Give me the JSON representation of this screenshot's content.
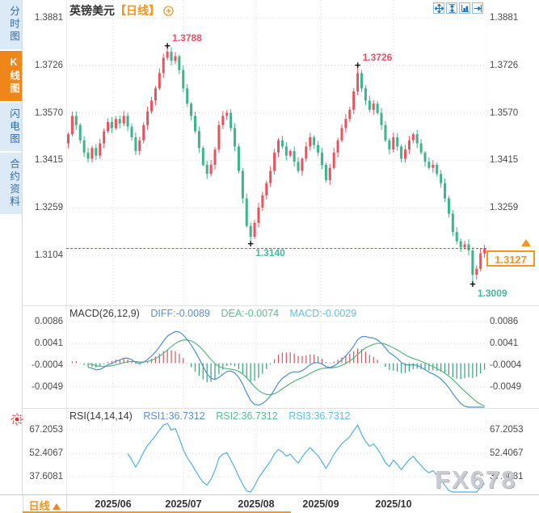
{
  "sidebar": {
    "tabs": [
      {
        "label": "分时图",
        "active": false
      },
      {
        "label": "K线图",
        "active": true
      },
      {
        "label": "闪电图",
        "active": false
      },
      {
        "label": "合约资料",
        "active": false
      }
    ]
  },
  "header": {
    "title": "英镑美元",
    "period_tag": "【日线】",
    "toolbar_icons": [
      "crosshair-move",
      "y-axis-zoom",
      "axis-scale",
      "scroll-right"
    ]
  },
  "indicators": {
    "macd": {
      "title": "MACD(26,12,9)",
      "diff_label": "DIFF:-0.0089",
      "dea_label": "DEA:-0.0074",
      "macd_label": "MACD:-0.0029"
    },
    "rsi": {
      "title": "RSI(14,14,14)",
      "rsi1_label": "RSI1:36.7312",
      "rsi2_label": "RSI2:36.7312",
      "rsi3_label": "RSI3:36.7312"
    }
  },
  "bottom_bar": {
    "period_label": "日线",
    "months": [
      "2025/06",
      "2025/07",
      "2025/08",
      "2025/09",
      "2025/10"
    ]
  },
  "watermark": "FX678",
  "chart_data": [
    {
      "type": "candlestick",
      "symbol": "英镑美元",
      "period": "日线",
      "y_ticks": [
        "1.3881",
        "1.3726",
        "1.3570",
        "1.3415",
        "1.3259",
        "1.3104"
      ],
      "x_labels": [
        "2025/06",
        "2025/07",
        "2025/08",
        "2025/09",
        "2025/10"
      ],
      "ylim": [
        1.3009,
        1.3881
      ],
      "open_first": 1.347,
      "closes": [
        1.35,
        1.356,
        1.353,
        1.348,
        1.344,
        1.342,
        1.3455,
        1.343,
        1.347,
        1.351,
        1.354,
        1.352,
        1.355,
        1.3535,
        1.356,
        1.3525,
        1.349,
        1.3445,
        1.348,
        1.353,
        1.3575,
        1.361,
        1.365,
        1.37,
        1.375,
        1.377,
        1.374,
        1.3755,
        1.371,
        1.365,
        1.36,
        1.356,
        1.351,
        1.3455,
        1.34,
        1.337,
        1.34,
        1.345,
        1.353,
        1.356,
        1.357,
        1.352,
        1.346,
        1.338,
        1.329,
        1.32,
        1.3165,
        1.321,
        1.326,
        1.33,
        1.334,
        1.338,
        1.344,
        1.348,
        1.346,
        1.343,
        1.3445,
        1.341,
        1.338,
        1.342,
        1.346,
        1.349,
        1.3465,
        1.344,
        1.34,
        1.335,
        1.339,
        1.344,
        1.348,
        1.352,
        1.355,
        1.358,
        1.364,
        1.37,
        1.365,
        1.361,
        1.358,
        1.36,
        1.357,
        1.353,
        1.348,
        1.345,
        1.349,
        1.346,
        1.342,
        1.345,
        1.348,
        1.35,
        1.347,
        1.344,
        1.341,
        1.339,
        1.34,
        1.337,
        1.334,
        1.329,
        1.324,
        1.318,
        1.315,
        1.313,
        1.314,
        1.312,
        1.304,
        1.306,
        1.311,
        1.3127
      ],
      "key_points": [
        {
          "index": 25,
          "price": 1.3788,
          "label": "1.3788",
          "kind": "high"
        },
        {
          "index": 73,
          "price": 1.3726,
          "label": "1.3726",
          "kind": "high"
        },
        {
          "index": 46,
          "price": 1.314,
          "label": "1.3140",
          "kind": "low"
        },
        {
          "index": 102,
          "price": 1.3009,
          "label": "1.3009",
          "kind": "low"
        }
      ],
      "current_price": {
        "label": "1.3127",
        "value": 1.3127
      },
      "colors": {
        "up": "#e8535e",
        "down": "#3cb48c",
        "high_label": "#ef5067",
        "low_label": "#45b8a1",
        "current": "#f7931e",
        "current_line": "#2f80e0"
      }
    },
    {
      "type": "line",
      "name": "MACD",
      "params": [
        26,
        12,
        9
      ],
      "values_shown": {
        "DIFF": -0.0089,
        "DEA": -0.0074,
        "MACD": -0.0029
      },
      "y_ticks": [
        "0.0086",
        "0.0041",
        "-0.0004",
        "-0.0049"
      ],
      "derived_from": "closes",
      "colors": {
        "diff_line": "#4a8fd4",
        "dea_line": "#53b87b",
        "hist_pos": "#d9545e",
        "hist_neg": "#2fa37c"
      }
    },
    {
      "type": "line",
      "name": "RSI",
      "params": [
        14,
        14,
        14
      ],
      "values_shown": {
        "RSI1": 36.7312,
        "RSI2": 36.7312,
        "RSI3": 36.7312
      },
      "y_ticks": [
        "67.2053",
        "52.4067",
        "37.6081"
      ],
      "derived_from": "closes",
      "colors": {
        "line": "#4fb2e2"
      }
    }
  ]
}
